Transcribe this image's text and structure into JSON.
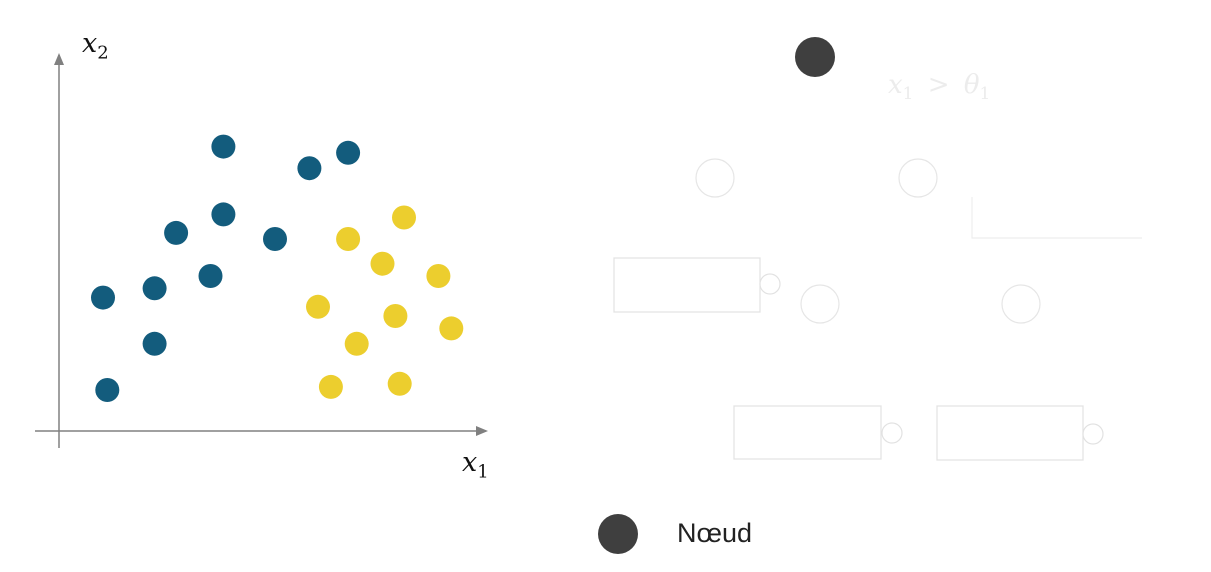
{
  "chart_data": {
    "type": "scatter",
    "title": "",
    "xlabel": "x",
    "xlabel_sub": "1",
    "ylabel": "x",
    "ylabel_sub": "2",
    "xlim": [
      0,
      10
    ],
    "ylim": [
      0,
      10
    ],
    "grid": false,
    "series": [
      {
        "color": "#135c7d",
        "points": [
          [
            3.8,
            9.2
          ],
          [
            5.8,
            8.5
          ],
          [
            6.7,
            9.0
          ],
          [
            2.7,
            6.4
          ],
          [
            3.8,
            7.0
          ],
          [
            5.0,
            6.2
          ],
          [
            1.0,
            4.3
          ],
          [
            2.2,
            4.6
          ],
          [
            3.5,
            5.0
          ],
          [
            2.2,
            2.8
          ],
          [
            1.1,
            1.3
          ]
        ]
      },
      {
        "color": "#ecce2e",
        "points": [
          [
            8.0,
            6.9
          ],
          [
            6.7,
            6.2
          ],
          [
            7.5,
            5.4
          ],
          [
            8.8,
            5.0
          ],
          [
            6.0,
            4.0
          ],
          [
            7.8,
            3.7
          ],
          [
            9.1,
            3.3
          ],
          [
            6.9,
            2.8
          ],
          [
            6.3,
            1.4
          ],
          [
            7.9,
            1.5
          ]
        ]
      }
    ]
  },
  "diagram": {
    "root_color": "#3f3f3f",
    "split_label": "x",
    "split_label_sub": "1",
    "split_op": ">",
    "split_threshold": "θ",
    "split_threshold_sub": "1"
  },
  "legend": {
    "node_label": "Nœud",
    "node_color": "#3f3f3f"
  }
}
